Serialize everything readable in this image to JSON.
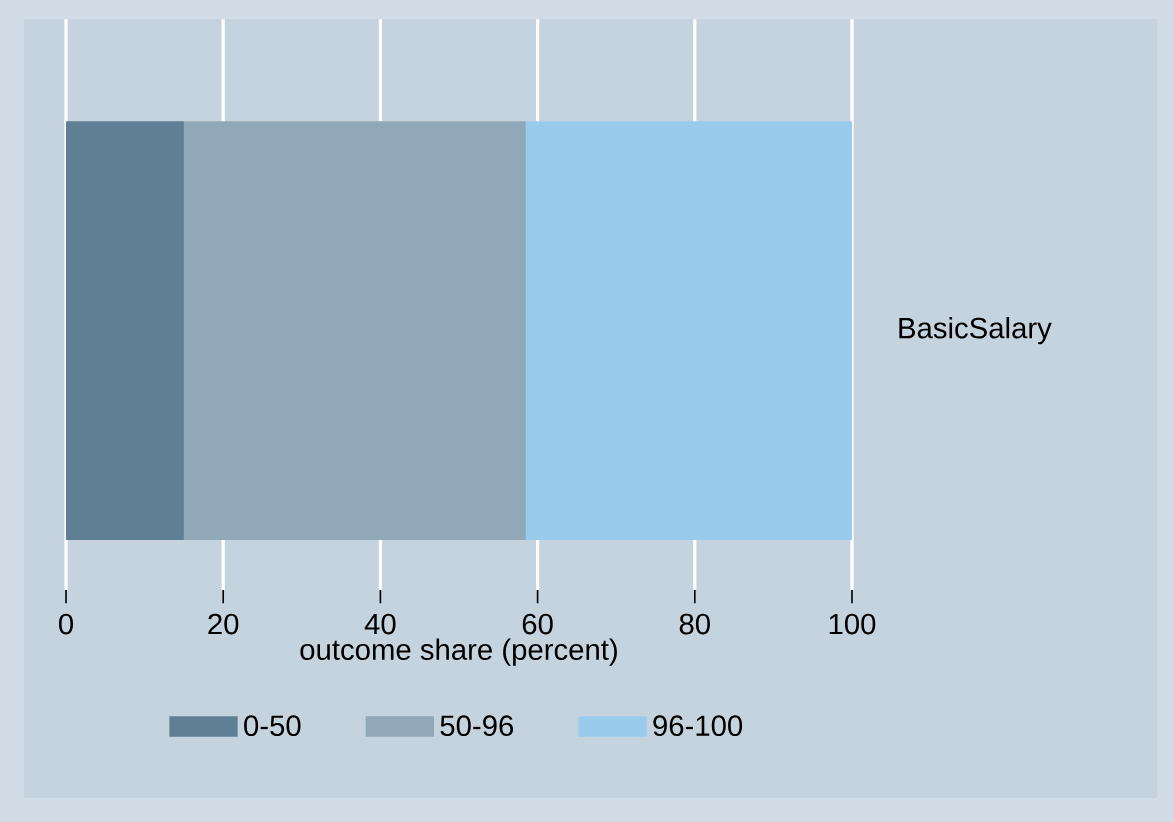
{
  "chart_data": {
    "type": "bar",
    "orientation": "horizontal",
    "stacked": true,
    "categories": [
      "BasicSalary"
    ],
    "xlabel": "outcome share (percent)",
    "xlim": [
      0,
      100
    ],
    "xticks": [
      0,
      20,
      40,
      60,
      80,
      100
    ],
    "grid": "x",
    "legend": "bottom",
    "series": [
      {
        "name": "0-50",
        "color": "#5f7f94",
        "values": [
          15
        ]
      },
      {
        "name": "50-96",
        "color": "#91a8b9",
        "values": [
          43.5
        ]
      },
      {
        "name": "96-100",
        "color": "#99ccec",
        "values": [
          41.5
        ]
      }
    ]
  }
}
